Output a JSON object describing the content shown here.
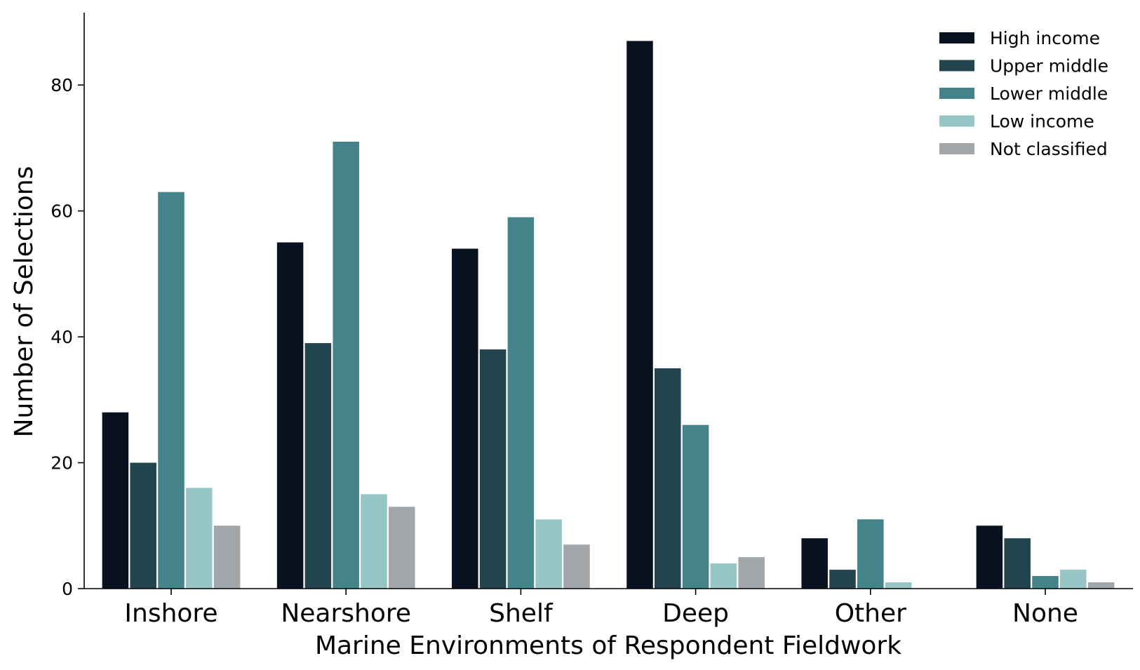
{
  "chart_data": {
    "type": "bar",
    "xlabel": "Marine Environments of Respondent Fieldwork",
    "ylabel": "Number of Selections",
    "ylim": [
      0,
      91.5
    ],
    "yticks": [
      "0",
      "20",
      "40",
      "60",
      "80"
    ],
    "ytick_values": [
      0,
      20,
      40,
      60,
      80
    ],
    "grid": false,
    "legend_position": "top-right",
    "categories": [
      "Inshore",
      "Nearshore",
      "Shelf",
      "Deep",
      "Other",
      "None"
    ],
    "series": [
      {
        "name": "High income",
        "color": "#08111f",
        "values": [
          28,
          55,
          54,
          87,
          8,
          10
        ]
      },
      {
        "name": "Upper middle",
        "color": "#21444f",
        "values": [
          20,
          39,
          38,
          35,
          3,
          8
        ]
      },
      {
        "name": "Lower middle",
        "color": "#438389",
        "values": [
          63,
          71,
          59,
          26,
          11,
          2
        ]
      },
      {
        "name": "Low income",
        "color": "#96c5c6",
        "values": [
          16,
          15,
          11,
          4,
          1,
          3
        ]
      },
      {
        "name": "Not classified",
        "color": "#a3a6a9",
        "values": [
          10,
          13,
          7,
          5,
          0,
          1
        ]
      }
    ]
  }
}
